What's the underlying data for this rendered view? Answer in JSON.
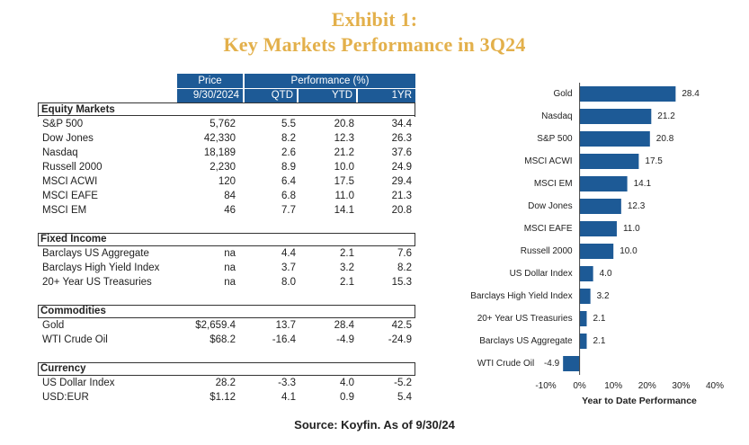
{
  "title_line1": "Exhibit 1:",
  "title_line2": "Key Markets Performance in 3Q24",
  "table": {
    "header": {
      "price": "Price",
      "performance": "Performance (%)",
      "date": "9/30/2024",
      "qtd": "QTD",
      "ytd": "YTD",
      "one_yr": "1YR"
    },
    "sections": [
      {
        "title": "Equity Markets",
        "rows": [
          {
            "name": "S&P 500",
            "price": "5,762",
            "qtd": "5.5",
            "ytd": "20.8",
            "one_yr": "34.4"
          },
          {
            "name": "Dow Jones",
            "price": "42,330",
            "qtd": "8.2",
            "ytd": "12.3",
            "one_yr": "26.3"
          },
          {
            "name": "Nasdaq",
            "price": "18,189",
            "qtd": "2.6",
            "ytd": "21.2",
            "one_yr": "37.6"
          },
          {
            "name": "Russell 2000",
            "price": "2,230",
            "qtd": "8.9",
            "ytd": "10.0",
            "one_yr": "24.9"
          },
          {
            "name": "MSCI ACWI",
            "price": "120",
            "qtd": "6.4",
            "ytd": "17.5",
            "one_yr": "29.4"
          },
          {
            "name": "MSCI EAFE",
            "price": "84",
            "qtd": "6.8",
            "ytd": "11.0",
            "one_yr": "21.3"
          },
          {
            "name": "MSCI EM",
            "price": "46",
            "qtd": "7.7",
            "ytd": "14.1",
            "one_yr": "20.8"
          }
        ]
      },
      {
        "title": "Fixed Income",
        "rows": [
          {
            "name": "Barclays US Aggregate",
            "price": "na",
            "qtd": "4.4",
            "ytd": "2.1",
            "one_yr": "7.6"
          },
          {
            "name": "Barclays High Yield Index",
            "price": "na",
            "qtd": "3.7",
            "ytd": "3.2",
            "one_yr": "8.2"
          },
          {
            "name": "20+ Year US Treasuries",
            "price": "na",
            "qtd": "8.0",
            "ytd": "2.1",
            "one_yr": "15.3"
          }
        ]
      },
      {
        "title": "Commodities",
        "rows": [
          {
            "name": "Gold",
            "price": "$2,659.4",
            "qtd": "13.7",
            "ytd": "28.4",
            "one_yr": "42.5"
          },
          {
            "name": "WTI Crude Oil",
            "price": "$68.2",
            "qtd": "-16.4",
            "ytd": "-4.9",
            "one_yr": "-24.9"
          }
        ]
      },
      {
        "title": "Currency",
        "rows": [
          {
            "name": "US Dollar Index",
            "price": "28.2",
            "qtd": "-3.3",
            "ytd": "4.0",
            "one_yr": "-5.2"
          },
          {
            "name": "USD:EUR",
            "price": "$1.12",
            "qtd": "4.1",
            "ytd": "0.9",
            "one_yr": "5.4"
          }
        ]
      }
    ]
  },
  "chart_data": {
    "type": "bar",
    "orientation": "horizontal",
    "categories": [
      "Gold",
      "Nasdaq",
      "S&P 500",
      "MSCI ACWI",
      "MSCI EM",
      "Dow Jones",
      "MSCI EAFE",
      "Russell 2000",
      "US Dollar Index",
      "Barclays High Yield Index",
      "20+ Year US Treasuries",
      "Barclays US Aggregate",
      "WTI Crude Oil"
    ],
    "values": [
      28.4,
      21.2,
      20.8,
      17.5,
      14.1,
      12.3,
      11.0,
      10.0,
      4.0,
      3.2,
      2.1,
      2.1,
      -4.9
    ],
    "value_labels": [
      "28.4",
      "21.2",
      "20.8",
      "17.5",
      "14.1",
      "12.3",
      "11.0",
      "10.0",
      "4.0",
      "3.2",
      "2.1",
      "2.1",
      "-4.9"
    ],
    "xlim": [
      -10,
      40
    ],
    "xticks": [
      -10,
      0,
      10,
      20,
      30,
      40
    ],
    "xtick_labels": [
      "-10%",
      "0%",
      "10%",
      "20%",
      "30%",
      "40%"
    ],
    "xlabel": "Year to Date Performance",
    "ylabel": "",
    "bar_color": "#1d5a96"
  },
  "source": "Source: Koyfin. As of 9/30/24"
}
